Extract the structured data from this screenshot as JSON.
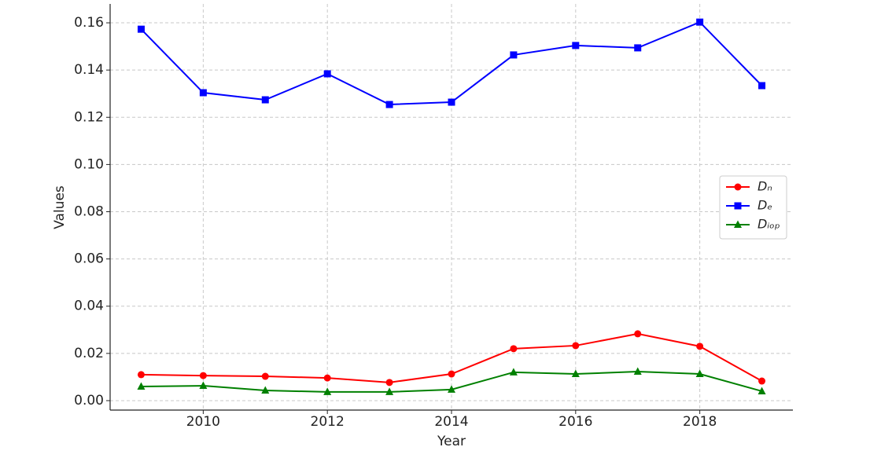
{
  "chart_data": {
    "type": "line",
    "x_label": "Year",
    "y_label": "Values",
    "x": [
      2009,
      2010,
      2011,
      2012,
      2013,
      2014,
      2015,
      2016,
      2017,
      2018,
      2019
    ],
    "series": [
      {
        "name": "Dₙ",
        "color": "#ff0000",
        "marker": "circle",
        "values": [
          0.011,
          0.0106,
          0.0103,
          0.0096,
          0.0077,
          0.0113,
          0.022,
          0.0233,
          0.0283,
          0.023,
          0.0083
        ]
      },
      {
        "name": "Dₑ",
        "color": "#0000ff",
        "marker": "square",
        "values": [
          0.1573,
          0.1304,
          0.1274,
          0.1384,
          0.1254,
          0.1264,
          0.1464,
          0.1504,
          0.1494,
          0.1603,
          0.1334
        ]
      },
      {
        "name": "Dᵢₒₚ",
        "color": "#008000",
        "marker": "triangle",
        "values": [
          0.006,
          0.0063,
          0.0043,
          0.0037,
          0.0037,
          0.0047,
          0.012,
          0.0113,
          0.0123,
          0.0113,
          0.004
        ]
      }
    ],
    "xlim": [
      2008.5,
      2019.5
    ],
    "xticks": [
      2010,
      2012,
      2014,
      2016,
      2018
    ],
    "ylim": [
      -0.004,
      0.168
    ],
    "yticks": [
      {
        "value": 0,
        "label": "0.00"
      },
      0.02,
      0.04,
      0.06,
      0.08,
      {
        "value": 0.1,
        "label": "0.10"
      },
      0.12,
      0.14,
      0.16
    ],
    "grid": true,
    "legend": "center right"
  }
}
